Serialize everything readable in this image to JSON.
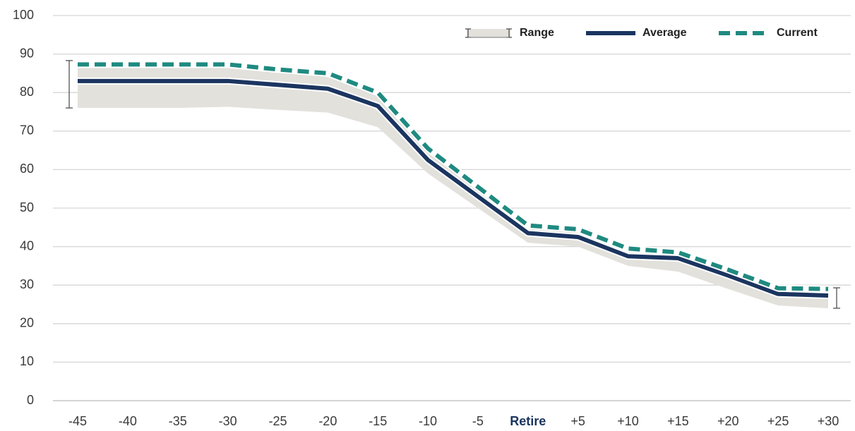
{
  "chart_data": {
    "type": "line",
    "categories": [
      "-45",
      "-40",
      "-35",
      "-30",
      "-25",
      "-20",
      "-15",
      "-10",
      "-5",
      "Retire",
      "+5",
      "+10",
      "+15",
      "+20",
      "+25",
      "+30"
    ],
    "ylim": [
      0,
      100
    ],
    "yticks": [
      0,
      10,
      20,
      30,
      40,
      50,
      60,
      70,
      80,
      90,
      100
    ],
    "grid": true,
    "legend": "top-right",
    "series": [
      {
        "name": "Range",
        "color": "#e3e1dc",
        "low": [
          76,
          76,
          76,
          76.3,
          75.5,
          74.8,
          71,
          59,
          50,
          41,
          40,
          35,
          33.5,
          29,
          24.7,
          24
        ],
        "high": [
          88.3,
          87.5,
          87.5,
          87.5,
          86.3,
          85.5,
          80.5,
          66,
          56,
          46,
          45,
          40,
          39,
          34.5,
          29.5,
          29.3
        ]
      },
      {
        "name": "Average",
        "color": "#1b3560",
        "values": [
          83,
          83,
          83,
          83,
          82,
          81,
          76.5,
          62.5,
          53,
          43.5,
          42.5,
          37.5,
          37,
          32.5,
          27.7,
          27.3
        ]
      },
      {
        "name": "Current",
        "color": "#1f8a80",
        "values": [
          87.3,
          87.3,
          87.3,
          87.3,
          86,
          85,
          80,
          65.5,
          55.5,
          45.5,
          44.5,
          39.5,
          38.5,
          34,
          29.2,
          29
        ]
      }
    ]
  }
}
